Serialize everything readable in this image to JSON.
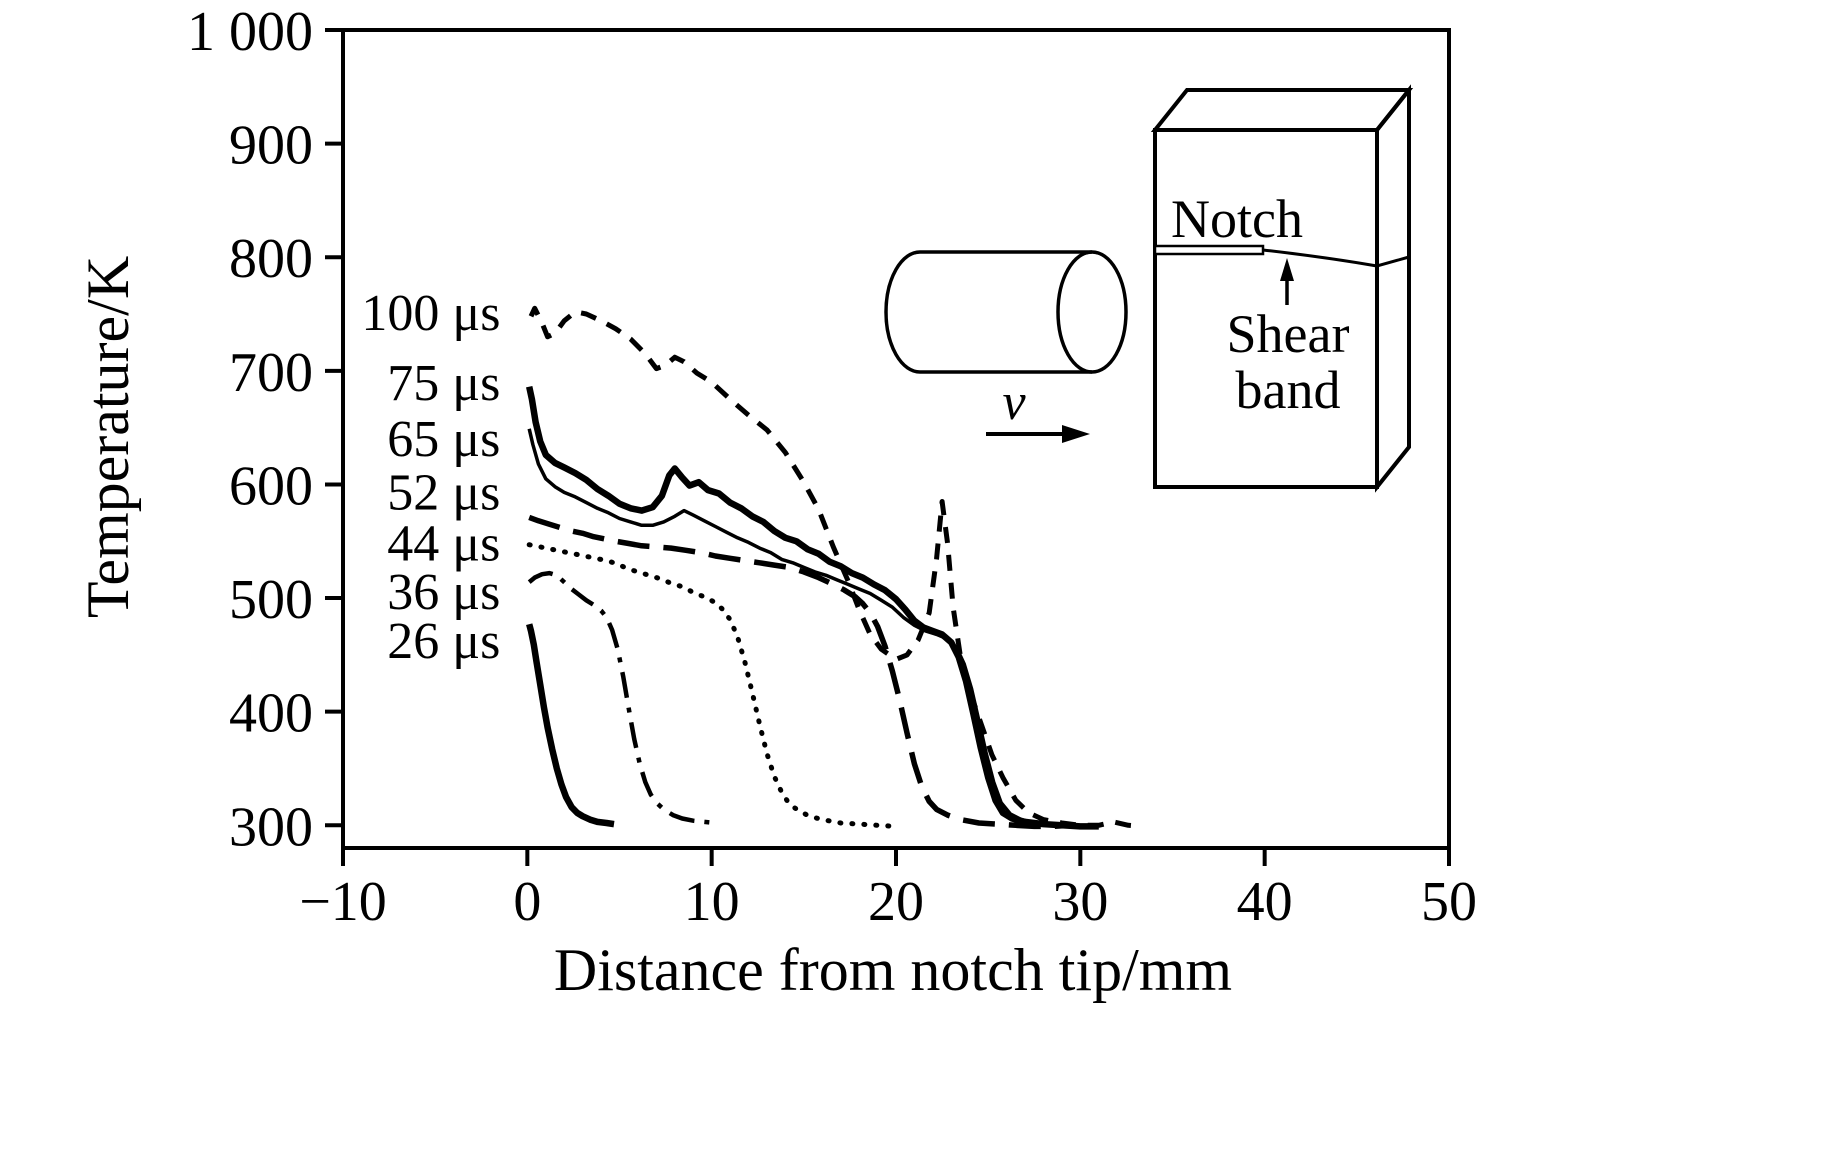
{
  "chart_data": {
    "type": "line",
    "title": "",
    "xlabel": "Distance from notch tip/mm",
    "ylabel": "Temperature/K",
    "xlim": [
      -10,
      50
    ],
    "ylim": [
      300,
      1000
    ],
    "grid": false,
    "legend_position": "left-inline-labels",
    "xticks": [
      {
        "value": -10,
        "label": "−10"
      },
      {
        "value": 0,
        "label": "0"
      },
      {
        "value": 10,
        "label": "10"
      },
      {
        "value": 20,
        "label": "20"
      },
      {
        "value": 30,
        "label": "30"
      },
      {
        "value": 40,
        "label": "40"
      },
      {
        "value": 50,
        "label": "50"
      }
    ],
    "yticks": [
      {
        "value": 300,
        "label": "300"
      },
      {
        "value": 400,
        "label": "400"
      },
      {
        "value": 500,
        "label": "500"
      },
      {
        "value": 600,
        "label": "600"
      },
      {
        "value": 700,
        "label": "700"
      },
      {
        "value": 800,
        "label": "800"
      },
      {
        "value": 900,
        "label": "900"
      },
      {
        "value": 1000,
        "label": "1 000"
      }
    ],
    "series": [
      {
        "name": "100 μs",
        "label": "100 μs",
        "label_pos": [
          -9.0,
          752
        ],
        "line_style": "dashed",
        "width": 5,
        "points": [
          [
            0.2,
            748
          ],
          [
            0.4,
            755
          ],
          [
            0.8,
            742
          ],
          [
            1.1,
            730
          ],
          [
            1.5,
            733
          ],
          [
            2,
            744
          ],
          [
            2.6,
            752
          ],
          [
            3.2,
            750
          ],
          [
            4,
            744
          ],
          [
            4.8,
            737
          ],
          [
            5.6,
            728
          ],
          [
            6.4,
            715
          ],
          [
            7,
            702
          ],
          [
            7.5,
            705
          ],
          [
            8,
            712
          ],
          [
            8.5,
            708
          ],
          [
            9.2,
            698
          ],
          [
            10,
            690
          ],
          [
            11,
            675
          ],
          [
            12,
            661
          ],
          [
            13,
            648
          ],
          [
            14,
            628
          ],
          [
            15,
            602
          ],
          [
            15.8,
            578
          ],
          [
            16.6,
            545
          ],
          [
            17.4,
            515
          ],
          [
            18,
            490
          ],
          [
            18.6,
            468
          ],
          [
            19.2,
            455
          ],
          [
            20,
            446
          ],
          [
            20.6,
            450
          ],
          [
            21.2,
            463
          ],
          [
            21.8,
            487
          ],
          [
            22.2,
            535
          ],
          [
            22.5,
            585
          ],
          [
            22.8,
            548
          ],
          [
            23.1,
            492
          ],
          [
            23.5,
            448
          ],
          [
            24,
            418
          ],
          [
            24.6,
            390
          ],
          [
            25.2,
            362
          ],
          [
            25.8,
            342
          ],
          [
            26.5,
            322
          ],
          [
            27.2,
            311
          ],
          [
            28,
            305
          ],
          [
            29,
            302
          ],
          [
            30,
            300
          ],
          [
            31,
            300
          ],
          [
            31.8,
            303
          ],
          [
            32.6,
            300
          ],
          [
            33.3,
            299
          ]
        ]
      },
      {
        "name": "75 μs",
        "label": "75 μs",
        "label_pos": [
          -7.6,
          690
        ],
        "line_style": "solid",
        "width": 6.5,
        "points": [
          [
            0.1,
            686
          ],
          [
            0.25,
            675
          ],
          [
            0.45,
            655
          ],
          [
            0.7,
            638
          ],
          [
            1,
            626
          ],
          [
            1.5,
            619
          ],
          [
            2,
            615
          ],
          [
            2.6,
            610
          ],
          [
            3.2,
            604
          ],
          [
            3.8,
            596
          ],
          [
            4.4,
            590
          ],
          [
            5,
            583
          ],
          [
            5.6,
            579
          ],
          [
            6.2,
            577
          ],
          [
            6.8,
            580
          ],
          [
            7.3,
            590
          ],
          [
            7.7,
            608
          ],
          [
            8,
            614
          ],
          [
            8.4,
            606
          ],
          [
            8.8,
            599
          ],
          [
            9.3,
            602
          ],
          [
            9.8,
            595
          ],
          [
            10.4,
            592
          ],
          [
            11,
            584
          ],
          [
            11.6,
            579
          ],
          [
            12.2,
            572
          ],
          [
            12.8,
            567
          ],
          [
            13.4,
            559
          ],
          [
            14,
            553
          ],
          [
            14.6,
            550
          ],
          [
            15.2,
            543
          ],
          [
            15.8,
            539
          ],
          [
            16.4,
            532
          ],
          [
            17,
            528
          ],
          [
            17.6,
            522
          ],
          [
            18.2,
            518
          ],
          [
            18.8,
            512
          ],
          [
            19.4,
            507
          ],
          [
            20,
            499
          ],
          [
            20.5,
            490
          ],
          [
            21,
            480
          ],
          [
            21.5,
            474
          ],
          [
            22,
            471
          ],
          [
            22.5,
            468
          ],
          [
            23,
            461
          ],
          [
            23.4,
            448
          ],
          [
            23.8,
            427
          ],
          [
            24.2,
            398
          ],
          [
            24.6,
            368
          ],
          [
            25,
            342
          ],
          [
            25.4,
            322
          ],
          [
            25.8,
            311
          ],
          [
            26.3,
            306
          ],
          [
            27,
            303
          ],
          [
            28,
            301
          ],
          [
            29,
            300
          ],
          [
            30,
            299
          ],
          [
            31,
            299
          ]
        ]
      },
      {
        "name": "65 μs",
        "label": "65 μs",
        "label_pos": [
          -7.6,
          641
        ],
        "line_style": "solid",
        "width": 3.5,
        "points": [
          [
            0.1,
            649
          ],
          [
            0.3,
            635
          ],
          [
            0.6,
            618
          ],
          [
            1,
            605
          ],
          [
            1.5,
            598
          ],
          [
            2,
            593
          ],
          [
            2.6,
            589
          ],
          [
            3.2,
            584
          ],
          [
            3.8,
            579
          ],
          [
            4.4,
            575
          ],
          [
            5,
            570
          ],
          [
            5.6,
            567
          ],
          [
            6.2,
            564
          ],
          [
            6.8,
            564
          ],
          [
            7.4,
            567
          ],
          [
            8,
            572
          ],
          [
            8.5,
            577
          ],
          [
            9,
            573
          ],
          [
            9.6,
            568
          ],
          [
            10.2,
            563
          ],
          [
            10.8,
            558
          ],
          [
            11.4,
            553
          ],
          [
            12,
            549
          ],
          [
            12.6,
            544
          ],
          [
            13.2,
            540
          ],
          [
            13.8,
            534
          ],
          [
            14.4,
            531
          ],
          [
            15,
            527
          ],
          [
            15.6,
            523
          ],
          [
            16.2,
            520
          ],
          [
            16.8,
            516
          ],
          [
            17.4,
            512
          ],
          [
            18,
            508
          ],
          [
            18.6,
            504
          ],
          [
            19.2,
            498
          ],
          [
            19.8,
            492
          ],
          [
            20.4,
            483
          ],
          [
            21,
            476
          ],
          [
            21.6,
            471
          ],
          [
            22.2,
            468
          ],
          [
            22.8,
            464
          ],
          [
            23.3,
            456
          ],
          [
            23.7,
            442
          ],
          [
            24.1,
            420
          ],
          [
            24.5,
            392
          ],
          [
            24.9,
            363
          ],
          [
            25.3,
            338
          ],
          [
            25.7,
            320
          ],
          [
            26.2,
            310
          ],
          [
            26.8,
            305
          ],
          [
            27.5,
            302
          ],
          [
            28.5,
            300
          ],
          [
            29.5,
            299
          ],
          [
            30.5,
            299
          ]
        ]
      },
      {
        "name": "52 μs",
        "label": "52 μs",
        "label_pos": [
          -7.6,
          594
        ],
        "line_style": "long-dash",
        "width": 5.5,
        "points": [
          [
            0.1,
            571
          ],
          [
            0.6,
            568
          ],
          [
            1.2,
            565
          ],
          [
            1.8,
            562
          ],
          [
            2.4,
            559
          ],
          [
            3,
            557
          ],
          [
            3.6,
            554
          ],
          [
            4.2,
            552
          ],
          [
            4.8,
            550
          ],
          [
            5.5,
            548
          ],
          [
            6.2,
            546
          ],
          [
            7,
            545
          ],
          [
            7.8,
            544
          ],
          [
            8.6,
            542
          ],
          [
            9.4,
            540
          ],
          [
            10.2,
            537
          ],
          [
            11,
            535
          ],
          [
            11.8,
            533
          ],
          [
            12.6,
            531
          ],
          [
            13.4,
            529
          ],
          [
            14.2,
            527
          ],
          [
            15,
            523
          ],
          [
            15.8,
            518
          ],
          [
            16.6,
            512
          ],
          [
            17.2,
            507
          ],
          [
            17.8,
            501
          ],
          [
            18.2,
            495
          ],
          [
            18.6,
            487
          ],
          [
            19,
            475
          ],
          [
            19.4,
            458
          ],
          [
            19.8,
            436
          ],
          [
            20.2,
            410
          ],
          [
            20.6,
            381
          ],
          [
            21,
            354
          ],
          [
            21.4,
            334
          ],
          [
            21.8,
            321
          ],
          [
            22.2,
            314
          ],
          [
            22.8,
            309
          ],
          [
            23.5,
            305
          ],
          [
            24.5,
            302
          ],
          [
            25.5,
            301
          ],
          [
            26.5,
            300
          ],
          [
            27.5,
            299
          ],
          [
            28.5,
            299
          ],
          [
            29.5,
            300
          ]
        ]
      },
      {
        "name": "44 μs",
        "label": "44 μs",
        "label_pos": [
          -7.6,
          549
        ],
        "line_style": "dotted",
        "width": 5,
        "points": [
          [
            0.1,
            547
          ],
          [
            0.7,
            545
          ],
          [
            1.3,
            543
          ],
          [
            1.9,
            541
          ],
          [
            2.5,
            539
          ],
          [
            3.1,
            537
          ],
          [
            3.7,
            535
          ],
          [
            4.3,
            533
          ],
          [
            4.9,
            530
          ],
          [
            5.4,
            526
          ],
          [
            6,
            523
          ],
          [
            6.6,
            520
          ],
          [
            7.2,
            517
          ],
          [
            7.8,
            513
          ],
          [
            8.4,
            510
          ],
          [
            9,
            505
          ],
          [
            9.6,
            501
          ],
          [
            10.2,
            496
          ],
          [
            10.6,
            490
          ],
          [
            11,
            481
          ],
          [
            11.4,
            466
          ],
          [
            11.8,
            444
          ],
          [
            12.2,
            417
          ],
          [
            12.6,
            389
          ],
          [
            13,
            363
          ],
          [
            13.4,
            343
          ],
          [
            13.8,
            329
          ],
          [
            14.2,
            319
          ],
          [
            14.7,
            313
          ],
          [
            15.3,
            308
          ],
          [
            16,
            305
          ],
          [
            17,
            302
          ],
          [
            18,
            301
          ],
          [
            19,
            300
          ],
          [
            20,
            299
          ]
        ]
      },
      {
        "name": "36 μs",
        "label": "36 μs",
        "label_pos": [
          -7.6,
          506
        ],
        "line_style": "dash-dot",
        "width": 4.5,
        "points": [
          [
            0.1,
            514
          ],
          [
            0.4,
            518
          ],
          [
            0.8,
            521
          ],
          [
            1.2,
            522
          ],
          [
            1.6,
            520
          ],
          [
            2,
            514
          ],
          [
            2.4,
            508
          ],
          [
            2.8,
            503
          ],
          [
            3.2,
            498
          ],
          [
            3.6,
            494
          ],
          [
            4,
            489
          ],
          [
            4.3,
            483
          ],
          [
            4.6,
            472
          ],
          [
            4.9,
            455
          ],
          [
            5.2,
            431
          ],
          [
            5.5,
            403
          ],
          [
            5.8,
            376
          ],
          [
            6.1,
            354
          ],
          [
            6.4,
            338
          ],
          [
            6.7,
            327
          ],
          [
            7,
            320
          ],
          [
            7.4,
            314
          ],
          [
            7.9,
            309
          ],
          [
            8.4,
            306
          ],
          [
            9,
            304
          ],
          [
            9.6,
            303
          ],
          [
            10.2,
            302
          ]
        ]
      },
      {
        "name": "26 μs",
        "label": "26 μs",
        "label_pos": [
          -7.6,
          463
        ],
        "line_style": "solid",
        "width": 6.5,
        "points": [
          [
            0.1,
            477
          ],
          [
            0.2,
            471
          ],
          [
            0.35,
            459
          ],
          [
            0.5,
            444
          ],
          [
            0.7,
            424
          ],
          [
            0.9,
            404
          ],
          [
            1.1,
            386
          ],
          [
            1.35,
            367
          ],
          [
            1.6,
            350
          ],
          [
            1.85,
            336
          ],
          [
            2.1,
            325
          ],
          [
            2.4,
            316
          ],
          [
            2.7,
            311
          ],
          [
            3,
            308
          ],
          [
            3.4,
            305
          ],
          [
            3.8,
            303
          ],
          [
            4.3,
            302
          ],
          [
            4.7,
            301
          ]
        ]
      }
    ]
  },
  "inset": {
    "velocity_label": "v",
    "notch_label": "Notch",
    "shear_band_label": [
      "Shear",
      "band"
    ]
  }
}
